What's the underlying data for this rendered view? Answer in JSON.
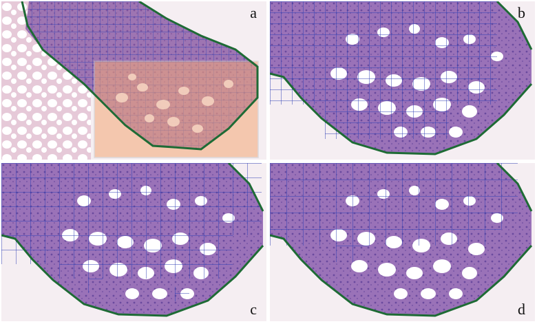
{
  "panels": [
    {
      "id": "a",
      "label": "a",
      "highlight_color": "#f4a878",
      "grid_color": "#2f3fb4",
      "boundary_color": "#1e6b35"
    },
    {
      "id": "b",
      "label": "b",
      "grid_color": "#2f3fb4",
      "boundary_color": "#1e6b35"
    },
    {
      "id": "c",
      "label": "c",
      "grid_color": "#2f3fb4",
      "boundary_color": "#1e6b35"
    },
    {
      "id": "d",
      "label": "d",
      "grid_color": "#2f3fb4",
      "boundary_color": "#1e6b35"
    }
  ]
}
